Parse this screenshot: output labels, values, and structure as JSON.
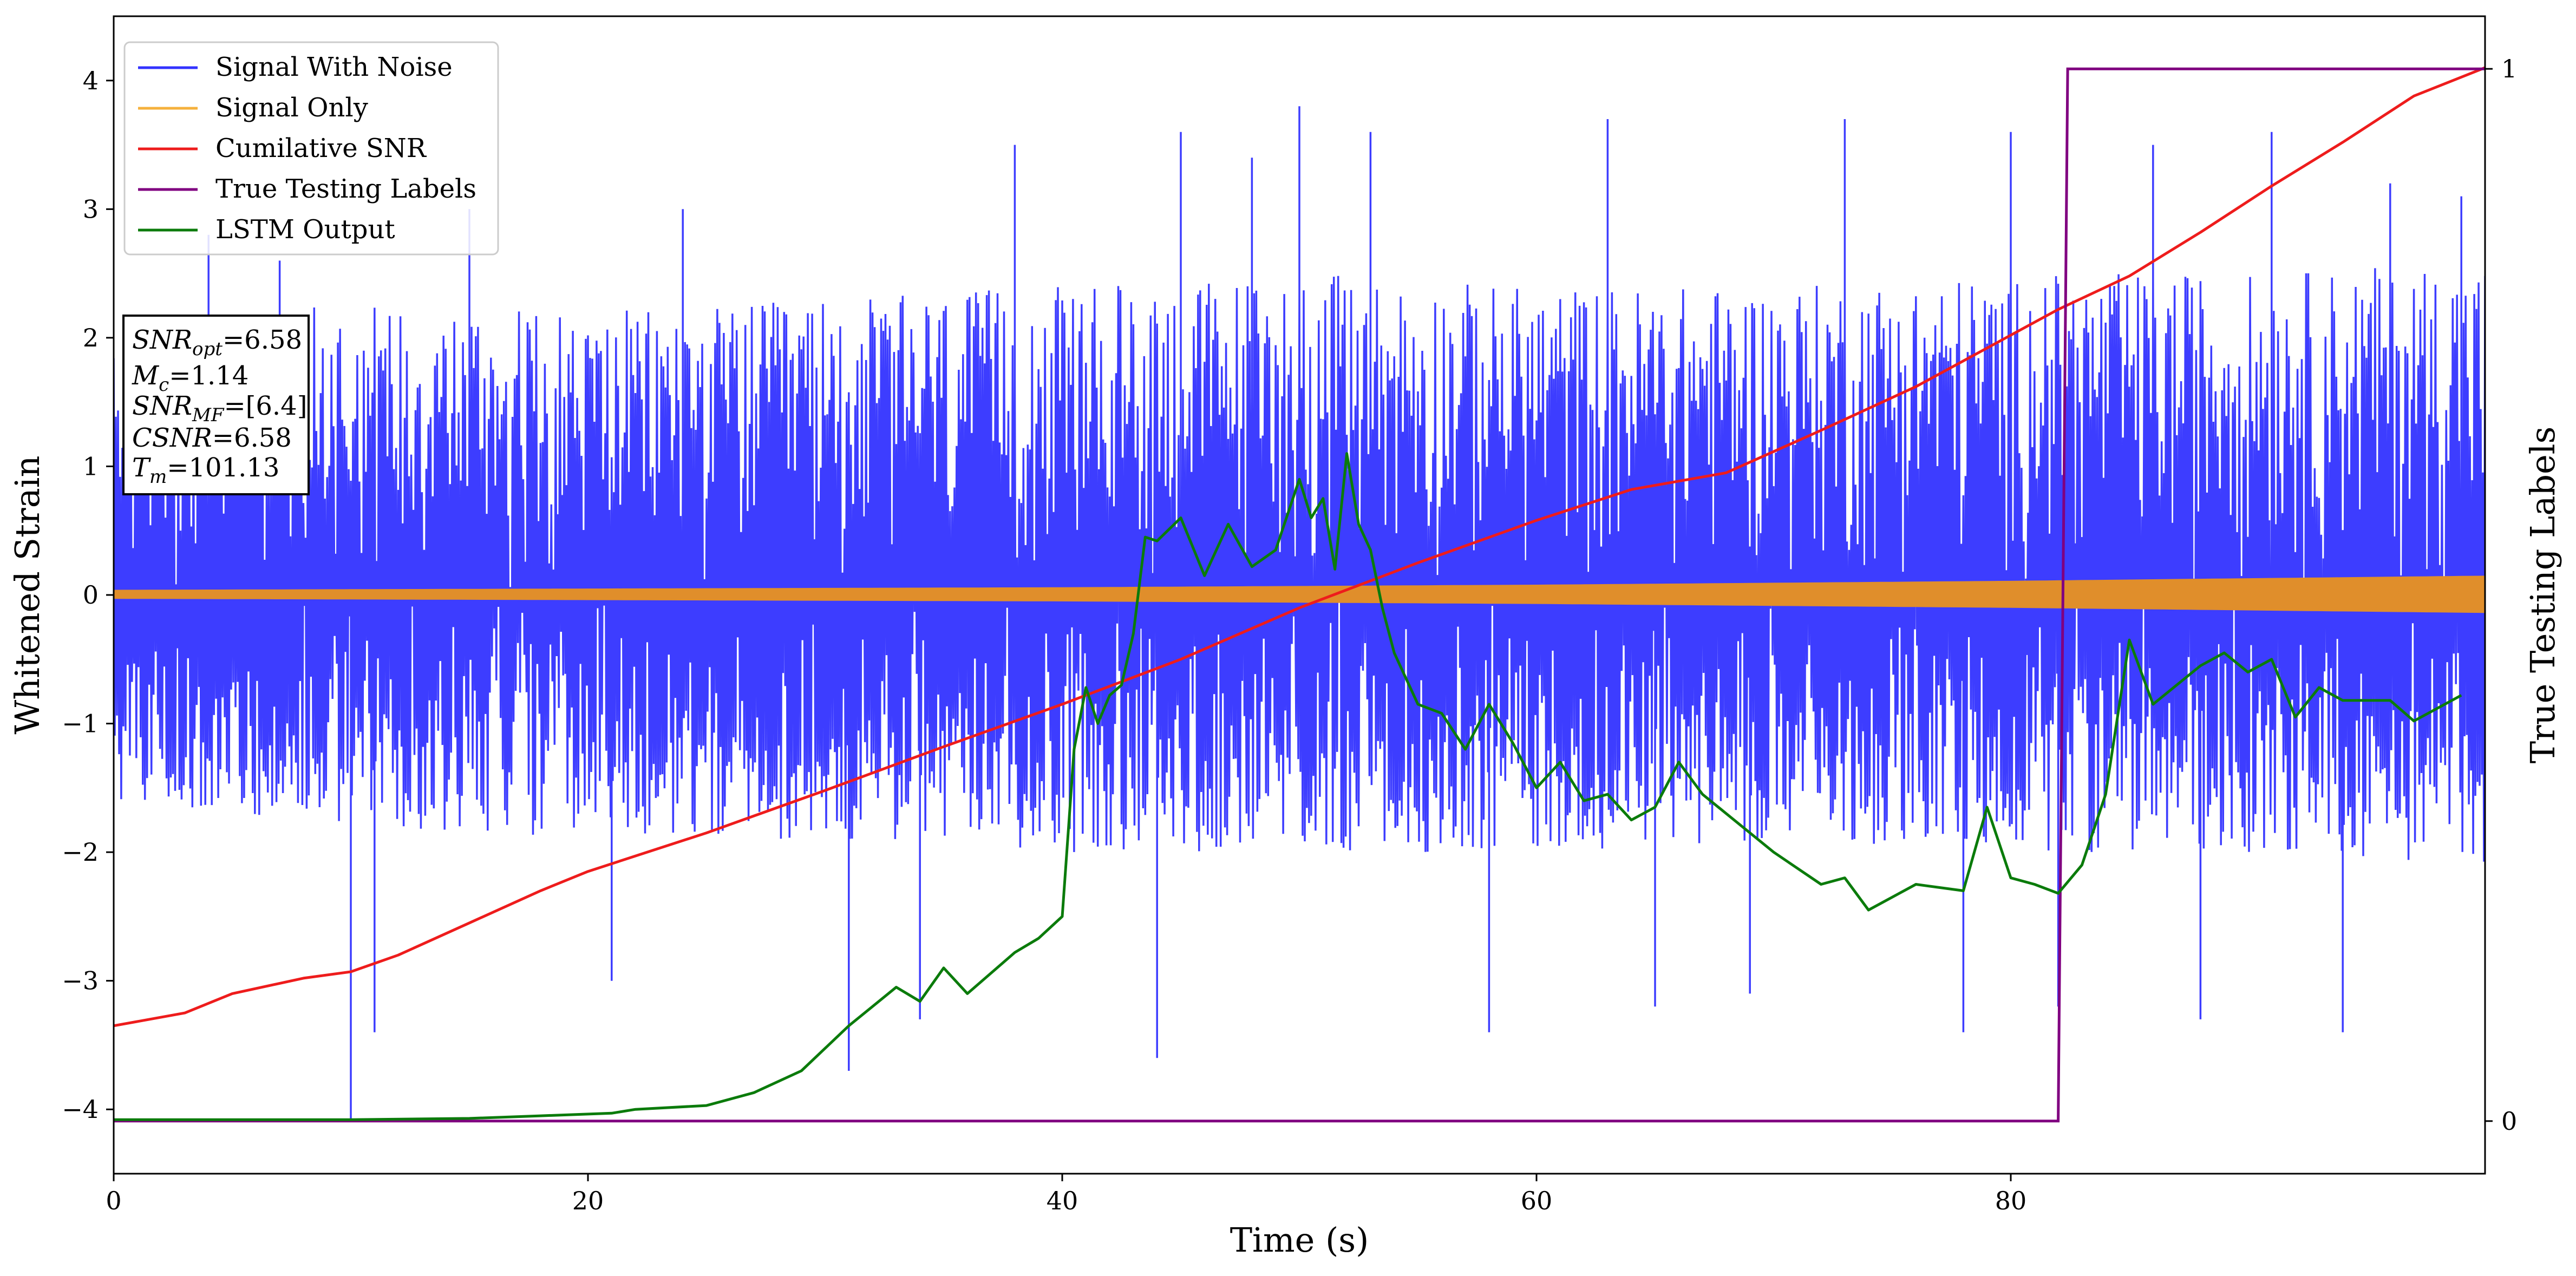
{
  "chart_data": {
    "type": "line",
    "title": "",
    "xlabel": "Time (s)",
    "ylabel": "Whitened Strain",
    "y2label": "True Testing Labels",
    "xlim": [
      0,
      100
    ],
    "ylim": [
      -4.5,
      4.5
    ],
    "y2lim": [
      -0.05,
      1.05
    ],
    "x_ticks": [
      0,
      20,
      40,
      60,
      80
    ],
    "y_ticks": [
      -4,
      -3,
      -2,
      -1,
      0,
      1,
      2,
      3,
      4
    ],
    "y2_ticks": [
      0,
      1
    ],
    "grid": false,
    "legend_position": "top-left",
    "colors": {
      "signal_with_noise": "#3333ff",
      "signal_only": "#e08e2b",
      "cumulative_snr": "#ee1c1c",
      "true_labels": "#800080",
      "lstm_output": "#0b7b0b"
    },
    "series": [
      {
        "name": "Signal With Noise",
        "axis": "left",
        "kind": "noise-band",
        "upper_envelope": [
          [
            0,
            1.9
          ],
          [
            10,
            2.3
          ],
          [
            20,
            2.2
          ],
          [
            30,
            2.3
          ],
          [
            40,
            2.4
          ],
          [
            50,
            2.5
          ],
          [
            60,
            2.4
          ],
          [
            70,
            2.4
          ],
          [
            80,
            2.5
          ],
          [
            90,
            2.5
          ],
          [
            100,
            2.6
          ]
        ],
        "lower_envelope": [
          [
            0,
            -1.6
          ],
          [
            10,
            -1.8
          ],
          [
            20,
            -1.9
          ],
          [
            30,
            -1.9
          ],
          [
            40,
            -2.0
          ],
          [
            50,
            -2.0
          ],
          [
            60,
            -2.0
          ],
          [
            70,
            -1.9
          ],
          [
            80,
            -2.0
          ],
          [
            90,
            -2.0
          ],
          [
            100,
            -2.1
          ]
        ],
        "spikes": [
          [
            4,
            2.8
          ],
          [
            7,
            2.6
          ],
          [
            10,
            -4.1
          ],
          [
            11,
            -3.4
          ],
          [
            15,
            3.0
          ],
          [
            21,
            -3.0
          ],
          [
            24,
            3.0
          ],
          [
            31,
            -3.7
          ],
          [
            34,
            -3.3
          ],
          [
            38,
            3.5
          ],
          [
            44,
            -3.6
          ],
          [
            45,
            3.6
          ],
          [
            48,
            3.4
          ],
          [
            50,
            3.8
          ],
          [
            53,
            3.6
          ],
          [
            58,
            -3.4
          ],
          [
            63,
            3.7
          ],
          [
            65,
            -3.2
          ],
          [
            69,
            -3.1
          ],
          [
            73,
            3.7
          ],
          [
            78,
            -3.4
          ],
          [
            80,
            3.6
          ],
          [
            82,
            -3.2
          ],
          [
            86,
            3.5
          ],
          [
            88,
            -3.3
          ],
          [
            91,
            3.6
          ],
          [
            94,
            -3.4
          ],
          [
            96,
            3.2
          ],
          [
            99,
            3.1
          ]
        ]
      },
      {
        "name": "Signal Only",
        "axis": "left",
        "kind": "band",
        "upper_envelope": [
          [
            0,
            0.04
          ],
          [
            20,
            0.05
          ],
          [
            40,
            0.06
          ],
          [
            60,
            0.08
          ],
          [
            80,
            0.11
          ],
          [
            100,
            0.15
          ]
        ],
        "lower_envelope": [
          [
            0,
            -0.03
          ],
          [
            20,
            -0.04
          ],
          [
            40,
            -0.05
          ],
          [
            60,
            -0.07
          ],
          [
            80,
            -0.1
          ],
          [
            100,
            -0.14
          ]
        ]
      },
      {
        "name": "Cumilative SNR",
        "axis": "left",
        "kind": "line",
        "x": [
          0,
          3,
          5,
          8,
          10,
          12,
          15,
          18,
          20,
          25,
          30,
          35,
          40,
          45,
          50,
          55,
          60,
          64,
          68,
          72,
          76,
          80,
          82,
          85,
          88,
          91,
          94,
          97,
          100
        ],
        "y": [
          -3.35,
          -3.25,
          -3.1,
          -2.98,
          -2.93,
          -2.8,
          -2.55,
          -2.3,
          -2.15,
          -1.85,
          -1.52,
          -1.18,
          -0.85,
          -0.5,
          -0.1,
          0.25,
          0.58,
          0.82,
          0.95,
          1.28,
          1.62,
          2.02,
          2.22,
          2.48,
          2.82,
          3.18,
          3.52,
          3.88,
          4.1
        ]
      },
      {
        "name": "True Testing Labels",
        "axis": "right",
        "kind": "step",
        "x": [
          0,
          82,
          82.4,
          100
        ],
        "y": [
          0,
          0,
          1,
          1
        ]
      },
      {
        "name": "LSTM Output",
        "axis": "left",
        "kind": "line",
        "x": [
          0,
          10,
          15,
          18,
          21,
          22,
          25,
          27,
          29,
          31,
          32,
          33,
          34,
          35,
          36,
          38,
          39,
          40,
          40.5,
          41,
          41.5,
          42,
          42.5,
          43,
          43.5,
          44,
          45,
          46,
          47,
          48,
          49,
          50,
          50.5,
          51,
          51.5,
          52,
          52.5,
          53,
          53.5,
          54,
          55,
          56,
          57,
          58,
          59,
          60,
          61,
          62,
          63,
          64,
          65,
          66,
          67,
          68,
          70,
          72,
          73,
          74,
          76,
          78,
          79,
          80,
          81,
          82,
          83,
          84,
          85,
          86,
          88,
          89,
          90,
          91,
          92,
          93,
          94,
          96,
          97,
          99
        ],
        "y": [
          -4.08,
          -4.08,
          -4.07,
          -4.05,
          -4.03,
          -4.0,
          -3.97,
          -3.87,
          -3.7,
          -3.35,
          -3.2,
          -3.05,
          -3.16,
          -2.9,
          -3.1,
          -2.78,
          -2.67,
          -2.5,
          -1.2,
          -0.72,
          -1.0,
          -0.78,
          -0.7,
          -0.3,
          0.45,
          0.42,
          0.6,
          0.15,
          0.55,
          0.22,
          0.35,
          0.9,
          0.6,
          0.75,
          0.2,
          1.1,
          0.55,
          0.35,
          -0.1,
          -0.45,
          -0.85,
          -0.92,
          -1.2,
          -0.85,
          -1.15,
          -1.5,
          -1.3,
          -1.6,
          -1.55,
          -1.75,
          -1.65,
          -1.3,
          -1.55,
          -1.7,
          -2.0,
          -2.25,
          -2.2,
          -2.45,
          -2.25,
          -2.3,
          -1.65,
          -2.2,
          -2.25,
          -2.32,
          -2.1,
          -1.55,
          -0.35,
          -0.85,
          -0.55,
          -0.45,
          -0.6,
          -0.5,
          -0.95,
          -0.72,
          -0.82,
          -0.82,
          -0.98,
          -0.78
        ]
      }
    ]
  },
  "legend": {
    "items": [
      {
        "label": "Signal With Noise",
        "color": "#3333ff"
      },
      {
        "label": "Signal Only",
        "color": "#f5b13d"
      },
      {
        "label": "Cumilative SNR",
        "color": "#ee1c1c"
      },
      {
        "label": "True Testing Labels",
        "color": "#800080"
      },
      {
        "label": "LSTM Output",
        "color": "#0b7b0b"
      }
    ]
  },
  "annotation": {
    "lines": [
      {
        "main": "SNR",
        "sub": "opt",
        "value": "=6.58",
        "italic": true
      },
      {
        "main": "M",
        "sub": "c",
        "value": "=1.14",
        "italic": true
      },
      {
        "main": "SNR",
        "sub": "MF",
        "value": "=[6.4]",
        "italic": true
      },
      {
        "main": "CSNR",
        "sub": "",
        "value": "=6.58",
        "italic": true
      },
      {
        "main": "T",
        "sub": "m",
        "value": "=101.13",
        "italic": true
      }
    ]
  }
}
